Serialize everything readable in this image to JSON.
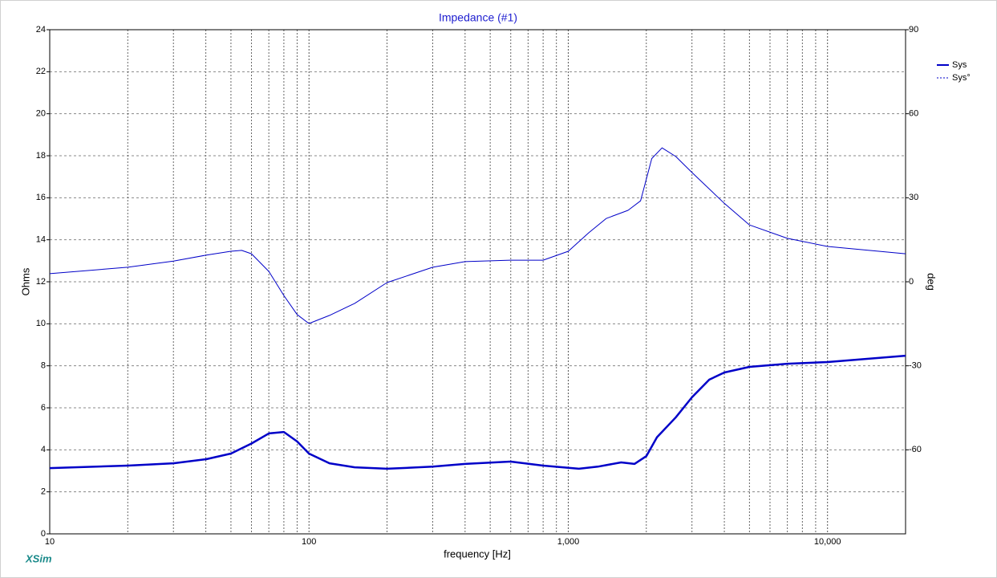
{
  "chart_data": {
    "type": "line",
    "title": "Impedance (#1)",
    "x_label": "frequency [Hz]",
    "y_label": "Ohms",
    "y2_label": "deg",
    "watermark": "XSim",
    "x_scale": "log",
    "grid": true,
    "xlim": [
      10,
      20000
    ],
    "xticks": [
      10,
      100,
      {
        "value": 1000,
        "label": "1,000"
      },
      {
        "value": 10000,
        "label": "10,000"
      }
    ],
    "xminorticks": [
      20,
      30,
      40,
      50,
      60,
      70,
      80,
      90,
      200,
      300,
      400,
      500,
      600,
      700,
      800,
      900,
      2000,
      3000,
      4000,
      5000,
      6000,
      7000,
      8000,
      9000
    ],
    "ylim": [
      0,
      24
    ],
    "yticks": [
      0,
      2,
      4,
      6,
      8,
      10,
      12,
      14,
      16,
      18,
      20,
      22,
      24
    ],
    "y2lim": [
      -90,
      90
    ],
    "y2ticks": [
      -60,
      -30,
      0,
      30,
      60,
      90
    ],
    "legend": "top-right",
    "series": [
      {
        "name": "Sys",
        "color": "#0000c8",
        "width": 2.5,
        "x": [
          10,
          20,
          30,
          40,
          50,
          60,
          70,
          80,
          90,
          100,
          120,
          150,
          200,
          300,
          400,
          600,
          800,
          1100,
          1300,
          1600,
          1800,
          2000,
          2200,
          2600,
          3000,
          3500,
          4000,
          5000,
          7000,
          10000,
          20000
        ],
        "values": [
          3.13,
          3.25,
          3.36,
          3.55,
          3.82,
          4.3,
          4.78,
          4.85,
          4.4,
          3.82,
          3.36,
          3.17,
          3.1,
          3.2,
          3.33,
          3.44,
          3.25,
          3.1,
          3.2,
          3.4,
          3.33,
          3.7,
          4.6,
          5.55,
          6.5,
          7.34,
          7.68,
          7.95,
          8.1,
          8.18,
          8.48
        ]
      },
      {
        "name": "Sys°",
        "color": "#0000c8",
        "width": 1,
        "axis": "y2",
        "x": [
          10,
          20,
          30,
          40,
          50,
          55,
          60,
          70,
          80,
          90,
          100,
          120,
          150,
          200,
          300,
          400,
          600,
          800,
          1000,
          1200,
          1400,
          1700,
          1900,
          2100,
          2300,
          2600,
          3000,
          4000,
          5000,
          7000,
          10000,
          20000
        ],
        "values": [
          2.9,
          5.2,
          7.4,
          9.5,
          10.9,
          11.2,
          10,
          3.7,
          -4.9,
          -11.7,
          -14.9,
          -12,
          -7.7,
          -0.3,
          5.2,
          7.2,
          7.7,
          7.7,
          10.9,
          17.5,
          22.6,
          25.5,
          28.9,
          44,
          47.8,
          44.7,
          39,
          28,
          20.3,
          15.5,
          12.6,
          10
        ]
      }
    ]
  }
}
